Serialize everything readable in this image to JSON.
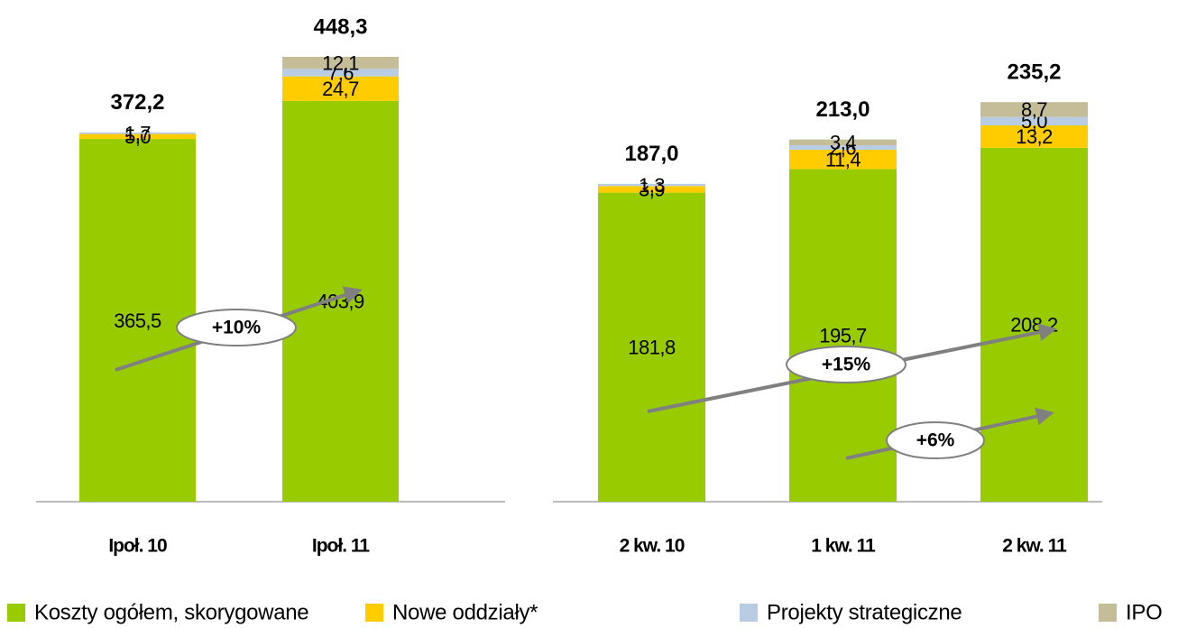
{
  "chart_data": [
    {
      "type": "stacked_bar",
      "categories": [
        "Ipoł. 10",
        "Ipoł. 11"
      ],
      "series": [
        {
          "name": "Koszty ogółem, skorygowane",
          "color": "#99cc00",
          "values": [
            365.5,
            403.9
          ],
          "value_labels": [
            "365,5",
            "403,9"
          ]
        },
        {
          "name": "Nowe oddziały*",
          "color": "#ffcc00",
          "values": [
            5.0,
            24.7
          ],
          "value_labels": [
            "5,0",
            "24,7"
          ]
        },
        {
          "name": "Projekty strategiczne",
          "color": "#b8cce4",
          "values": [
            1.7,
            7.6
          ],
          "value_labels": [
            "1,7",
            "7,6"
          ]
        },
        {
          "name": "IPO",
          "color": "#c4bd97",
          "values": [
            null,
            12.1
          ],
          "value_labels": [
            null,
            "12,1"
          ]
        }
      ],
      "totals": [
        372.2,
        448.3
      ],
      "total_labels": [
        "372,2",
        "448,3"
      ],
      "annotations": [
        "+10%"
      ]
    },
    {
      "type": "stacked_bar",
      "categories": [
        "2 kw. 10",
        "1 kw. 11",
        "2 kw. 11"
      ],
      "series": [
        {
          "values": [
            181.8,
            195.7,
            208.2
          ],
          "value_labels": [
            "181,8",
            "195,7",
            "208,2"
          ]
        },
        {
          "values": [
            3.9,
            11.4,
            13.2
          ],
          "value_labels": [
            "3,9",
            "11,4",
            "13,2"
          ]
        },
        {
          "values": [
            1.3,
            2.6,
            5.0
          ],
          "value_labels": [
            "1,3",
            "2,6",
            "5,0"
          ]
        },
        {
          "values": [
            null,
            3.4,
            8.7
          ],
          "value_labels": [
            null,
            "3,4",
            "8,7"
          ]
        }
      ],
      "totals": [
        187.0,
        213.0,
        235.2
      ],
      "total_labels": [
        "187,0",
        "213,0",
        "235,2"
      ],
      "annotations": [
        "+15%",
        "+6%"
      ]
    }
  ]
}
